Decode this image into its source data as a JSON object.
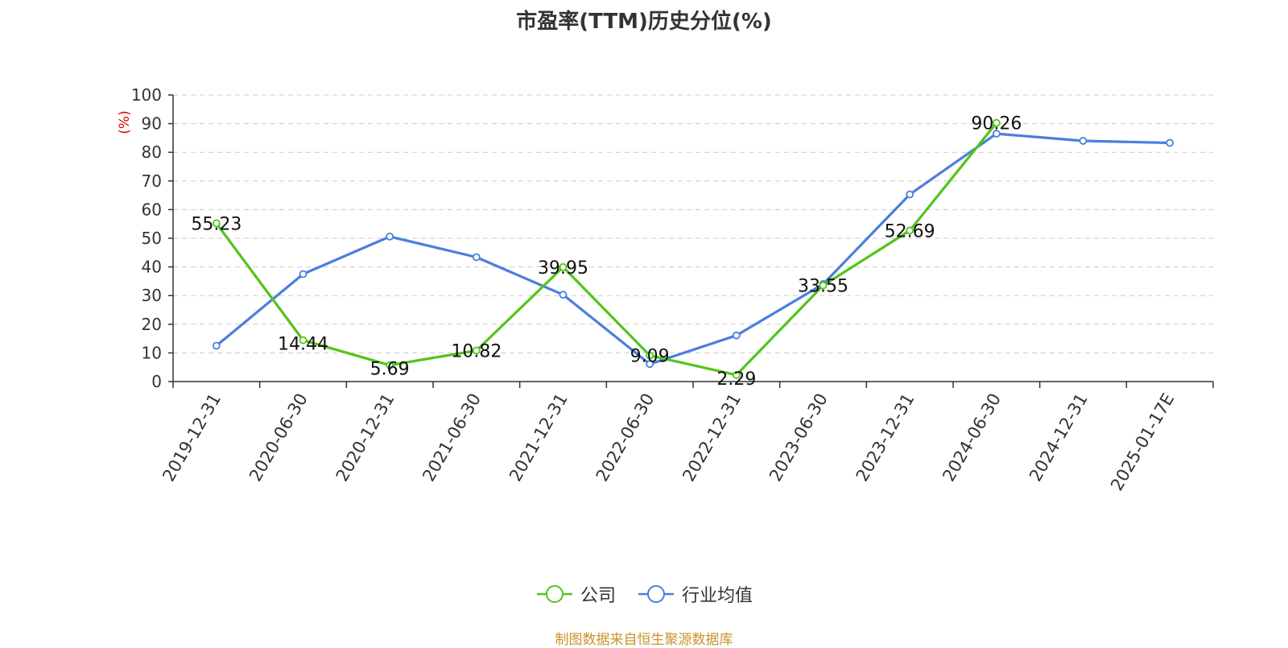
{
  "chart_data": {
    "type": "line",
    "title": "市盈率(TTM)历史分位(%)",
    "ylabel": "(%)",
    "ylim": [
      0,
      100
    ],
    "yticks": [
      "0",
      "10",
      "20",
      "30",
      "40",
      "50",
      "60",
      "70",
      "80",
      "90",
      "100"
    ],
    "grid": true,
    "legend_position": "bottom",
    "categories": [
      "2019-12-31",
      "2020-06-30",
      "2020-12-31",
      "2021-06-30",
      "2021-12-31",
      "2022-06-30",
      "2022-12-31",
      "2023-06-30",
      "2023-12-31",
      "2024-06-30",
      "2024-12-31",
      "2025-01-17E"
    ],
    "series": [
      {
        "name": "公司",
        "color": "#52c41a",
        "values": [
          55.23,
          14.44,
          5.69,
          10.82,
          39.95,
          9.09,
          2.29,
          33.55,
          52.69,
          90.26,
          null,
          null
        ],
        "labels": [
          "55.23",
          "14.44",
          "5.69",
          "10.82",
          "39.95",
          "9.09",
          "2.29",
          "33.55",
          "52.69",
          "90.26",
          null,
          null
        ]
      },
      {
        "name": "行业均值",
        "color": "#4a7fdc",
        "values": [
          12.5,
          37.5,
          50.6,
          43.4,
          30.3,
          6.1,
          16.1,
          34.0,
          65.3,
          86.5,
          84.0,
          83.3
        ]
      }
    ]
  },
  "source": "制图数据来自恒生聚源数据库"
}
